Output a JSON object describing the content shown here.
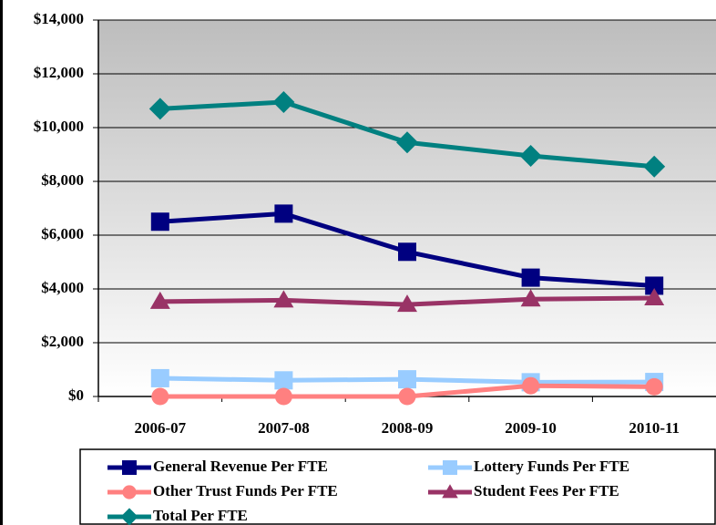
{
  "chart_data": {
    "type": "line",
    "categories": [
      "2006-07",
      "2007-08",
      "2008-09",
      "2009-10",
      "2010-11"
    ],
    "series": [
      {
        "name": "General Revenue Per FTE",
        "color": "#000080",
        "marker": "square",
        "values": [
          6500,
          6800,
          5380,
          4420,
          4120
        ]
      },
      {
        "name": "Lottery Funds Per FTE",
        "color": "#99ccff",
        "marker": "square",
        "values": [
          680,
          600,
          640,
          530,
          540
        ]
      },
      {
        "name": "Other Trust Funds Per FTE",
        "color": "#ff8080",
        "marker": "circle",
        "values": [
          0,
          0,
          0,
          400,
          360
        ]
      },
      {
        "name": "Student Fees Per FTE",
        "color": "#993366",
        "marker": "triangle",
        "values": [
          3530,
          3580,
          3420,
          3620,
          3660
        ]
      },
      {
        "name": "Total Per FTE",
        "color": "#008080",
        "marker": "diamond",
        "values": [
          10700,
          10950,
          9450,
          8950,
          8550
        ]
      }
    ],
    "ylim": [
      0,
      14000
    ],
    "yticks": [
      {
        "value": 0,
        "label": "$0"
      },
      {
        "value": 2000,
        "label": "$2,000"
      },
      {
        "value": 4000,
        "label": "$4,000"
      },
      {
        "value": 6000,
        "label": "$6,000"
      },
      {
        "value": 8000,
        "label": "$8,000"
      },
      {
        "value": 10000,
        "label": "$10,000"
      },
      {
        "value": 12000,
        "label": "$12,000"
      },
      {
        "value": 14000,
        "label": "$14,000"
      }
    ],
    "grid": true,
    "legend": "bottom"
  }
}
